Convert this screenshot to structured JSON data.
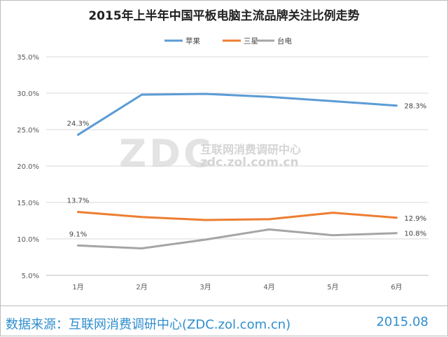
{
  "chart_data": {
    "type": "line",
    "title": "2015年上半年中国平板电脑主流品牌关注比例走势",
    "categories": [
      "1月",
      "2月",
      "3月",
      "4月",
      "5月",
      "6月"
    ],
    "series": [
      {
        "name": "苹果",
        "color": "#5b9bd5",
        "values": [
          24.3,
          29.8,
          29.9,
          29.5,
          28.9,
          28.3
        ]
      },
      {
        "name": "三星",
        "color": "#ed7d31",
        "values": [
          13.7,
          13.0,
          12.6,
          12.7,
          13.6,
          12.9
        ]
      },
      {
        "name": "台电",
        "color": "#a5a5a5",
        "values": [
          9.1,
          8.7,
          9.9,
          11.3,
          10.5,
          10.8
        ]
      }
    ],
    "data_labels": [
      {
        "series": 0,
        "index": 0,
        "text": "24.3%"
      },
      {
        "series": 0,
        "index": 5,
        "text": "28.3%"
      },
      {
        "series": 1,
        "index": 0,
        "text": "13.7%"
      },
      {
        "series": 1,
        "index": 5,
        "text": "12.9%"
      },
      {
        "series": 2,
        "index": 0,
        "text": "9.1%"
      },
      {
        "series": 2,
        "index": 5,
        "text": "10.8%"
      }
    ],
    "ylim": [
      5,
      35
    ],
    "yticks": [
      "5.0%",
      "10.0%",
      "15.0%",
      "20.0%",
      "25.0%",
      "30.0%",
      "35.0%"
    ],
    "grid": true,
    "legend": "top"
  },
  "watermark": {
    "logo": "ZDC",
    "cn": "互联网消费调研中心",
    "url": "zdc.zol.com.cn"
  },
  "footer": {
    "source": "数据来源：互联网消费调研中心(ZDC.zol.com.cn)",
    "date": "2015.08"
  }
}
